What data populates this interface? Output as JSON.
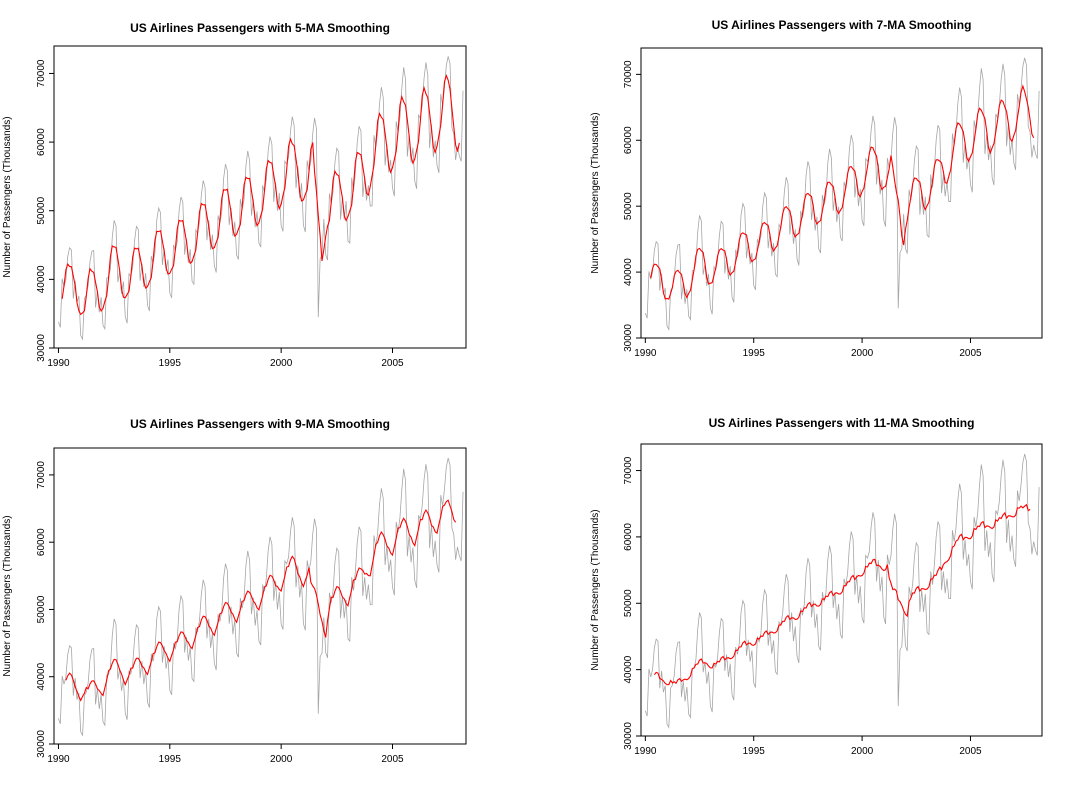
{
  "figure": {
    "background": "#ffffff",
    "raw_color": "#a6a6a6",
    "smooth_color": "#ff0000",
    "frame_color": "#000000"
  },
  "chart_data": [
    {
      "type": "line",
      "title": "US Airlines Passengers with 5-MA Smoothing",
      "ma_window": 5,
      "xlabel": "",
      "ylabel": "Number of Passengers (Thousands)",
      "xlim": [
        1989.8,
        2008.3
      ],
      "ylim": [
        30000,
        74000
      ],
      "xticks": [
        1990,
        1995,
        2000,
        2005
      ],
      "yticks": [
        30000,
        40000,
        50000,
        60000,
        70000
      ],
      "grid": false,
      "legend": "none",
      "series": [
        {
          "role": "raw",
          "color": "#a6a6a6"
        },
        {
          "role": "moving-average",
          "color": "#ff0000"
        }
      ]
    },
    {
      "type": "line",
      "title": "US Airlines Passengers with 7-MA Smoothing",
      "ma_window": 7,
      "xlabel": "",
      "ylabel": "Number of Passengers (Thousands)",
      "xlim": [
        1989.8,
        2008.3
      ],
      "ylim": [
        30000,
        74000
      ],
      "xticks": [
        1990,
        1995,
        2000,
        2005
      ],
      "yticks": [
        30000,
        40000,
        50000,
        60000,
        70000
      ],
      "grid": false,
      "legend": "none",
      "series": [
        {
          "role": "raw",
          "color": "#a6a6a6"
        },
        {
          "role": "moving-average",
          "color": "#ff0000"
        }
      ]
    },
    {
      "type": "line",
      "title": "US Airlines Passengers with 9-MA Smoothing",
      "ma_window": 9,
      "xlabel": "",
      "ylabel": "Number of Passengers (Thousands)",
      "xlim": [
        1989.8,
        2008.3
      ],
      "ylim": [
        30000,
        74000
      ],
      "xticks": [
        1990,
        1995,
        2000,
        2005
      ],
      "yticks": [
        30000,
        40000,
        50000,
        60000,
        70000
      ],
      "grid": false,
      "legend": "none",
      "series": [
        {
          "role": "raw",
          "color": "#a6a6a6"
        },
        {
          "role": "moving-average",
          "color": "#ff0000"
        }
      ]
    },
    {
      "type": "line",
      "title": "US Airlines Passengers with 11-MA Smoothing",
      "ma_window": 11,
      "xlabel": "",
      "ylabel": "Number of Passengers (Thousands)",
      "xlim": [
        1989.8,
        2008.3
      ],
      "ylim": [
        30000,
        74000
      ],
      "xticks": [
        1990,
        1995,
        2000,
        2005
      ],
      "yticks": [
        30000,
        40000,
        50000,
        60000,
        70000
      ],
      "grid": false,
      "legend": "none",
      "series": [
        {
          "role": "raw",
          "color": "#a6a6a6"
        },
        {
          "role": "moving-average",
          "color": "#ff0000"
        }
      ]
    }
  ],
  "raw_series": {
    "start": "1990-01",
    "frequency": "monthly",
    "unit": "thousands of passengers",
    "values": [
      33800,
      33000,
      40100,
      38900,
      40000,
      43300,
      44600,
      44300,
      37200,
      39800,
      36600,
      37600,
      31800,
      31300,
      37200,
      37700,
      39100,
      42600,
      44100,
      44200,
      35900,
      38300,
      35200,
      37400,
      33300,
      32800,
      40200,
      40300,
      41500,
      46100,
      48600,
      47800,
      39600,
      41200,
      37900,
      39700,
      34600,
      33600,
      40800,
      40400,
      41800,
      45600,
      47700,
      47300,
      39800,
      42300,
      38900,
      40900,
      36200,
      35400,
      43400,
      42300,
      43900,
      48700,
      50400,
      49700,
      42100,
      44500,
      41200,
      42900,
      38000,
      37300,
      45000,
      44200,
      45500,
      50000,
      52000,
      51300,
      43600,
      45900,
      42400,
      44400,
      39700,
      39300,
      47200,
      46700,
      48400,
      52300,
      54400,
      53400,
      45700,
      48600,
      44300,
      46500,
      42000,
      41000,
      49300,
      48200,
      49800,
      54700,
      56800,
      55800,
      47900,
      50400,
      46300,
      48400,
      43500,
      42900,
      51700,
      50200,
      51600,
      56500,
      58700,
      57300,
      49300,
      51700,
      47600,
      49900,
      45300,
      44700,
      53700,
      52700,
      54600,
      58700,
      60800,
      59700,
      51300,
      54200,
      50000,
      52600,
      47800,
      47000,
      57200,
      56800,
      57800,
      61500,
      63700,
      62400,
      53300,
      56500,
      51800,
      54000,
      47900,
      46900,
      57300,
      55800,
      57200,
      61200,
      63500,
      62000,
      34500,
      43000,
      43500,
      48800,
      43600,
      42800,
      52500,
      51000,
      52900,
      57100,
      59100,
      58600,
      48700,
      52000,
      48700,
      51400,
      45600,
      45300,
      54800,
      52800,
      55700,
      60000,
      62300,
      61600,
      52000,
      54800,
      51500,
      53700,
      50700,
      50700,
      61000,
      59300,
      61400,
      65600,
      68000,
      66500,
      56600,
      59600,
      55600,
      57400,
      53300,
      52100,
      63000,
      61500,
      63600,
      67800,
      70900,
      69200,
      57900,
      61000,
      57000,
      59200,
      54300,
      53200,
      64000,
      63400,
      65400,
      69300,
      71600,
      69800,
      59100,
      62600,
      57800,
      60200,
      56600,
      55500,
      67000,
      65400,
      67900,
      71200,
      72500,
      71400,
      62100,
      61200,
      57400,
      59300,
      58000,
      57200,
      67500
    ]
  }
}
